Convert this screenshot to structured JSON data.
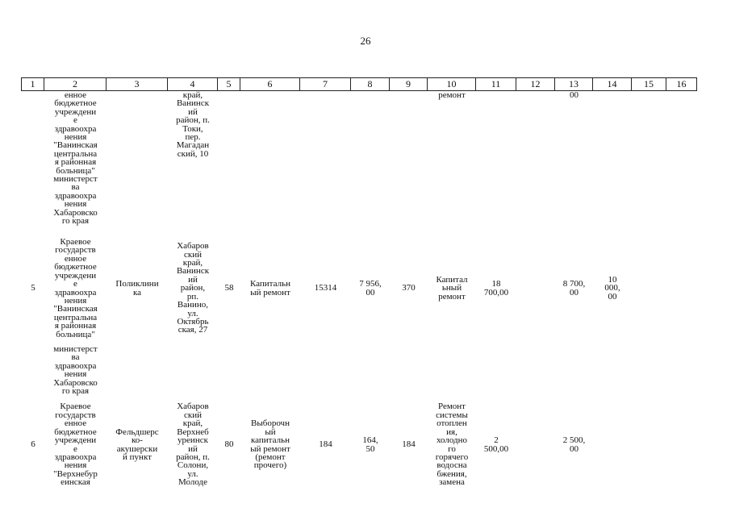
{
  "page_number": "26",
  "table": {
    "header": [
      "1",
      "2",
      "3",
      "4",
      "5",
      "6",
      "7",
      "8",
      "9",
      "10",
      "11",
      "12",
      "13",
      "14",
      "15",
      "16"
    ],
    "rows": [
      [
        null,
        "енное\nбюджетное\nучреждени\nе\nздравоохра\nнения\n\"Ванинская\nцентральна\nя районная\nбольница\"\nминистерст\nва\nздравоохра\nнения\nХабаровско\nго края",
        null,
        "край,\nВанинск\nий\nрайон, п.\nТоки,\nпер.\nМагадан\nский, 10",
        null,
        null,
        null,
        null,
        null,
        "ремонт",
        null,
        null,
        "00",
        null,
        null,
        null
      ],
      [
        "5",
        "Краевое\nгосударств\nенное\nбюджетное\nучреждени\nе\nздравоохра\nнения\n\"Ванинская\nцентральна\nя районная\nбольница\"",
        "Поликлини\nка",
        "Хабаров\nский\nкрай,\nВанинск\nий\nрайон,\nрп.\nВанино,\nул.\nОктябрь\nская, 27",
        "58",
        "Капитальн\nый ремонт",
        "15314",
        "7 956,\n00",
        "370",
        "Капитал\nьный\nремонт",
        "18\n700,00",
        null,
        "8 700,\n00",
        "10\n000,\n00",
        null,
        null
      ],
      [
        null,
        "министерст\nва\nздравоохра\nнения\nХабаровско\nго края",
        null,
        null,
        null,
        null,
        null,
        null,
        null,
        null,
        null,
        null,
        null,
        null,
        null,
        null
      ],
      [
        "6",
        "Краевое\nгосударств\nенное\nбюджетное\nучреждени\nе\nздравоохра\nнения\n\"Верхнебур\nеинская",
        "Фельдшерс\nко-\nакушерски\nй пункт",
        "Хабаров\nский\nкрай,\nВерхнеб\nуреинск\nий\nрайон, п.\nСолони,\nул.\nМолоде",
        "80",
        "Выборочн\nый\nкапитальн\nый ремонт\n(ремонт\nпрочего)",
        "184",
        "164,\n50",
        "184",
        "Ремонт\nсистемы\nотоплен\nия,\nхолодно\nго\nгорячего\nводосна\nбжения,\nзамена",
        "2\n500,00",
        null,
        "2 500,\n00",
        null,
        null,
        null
      ]
    ]
  }
}
